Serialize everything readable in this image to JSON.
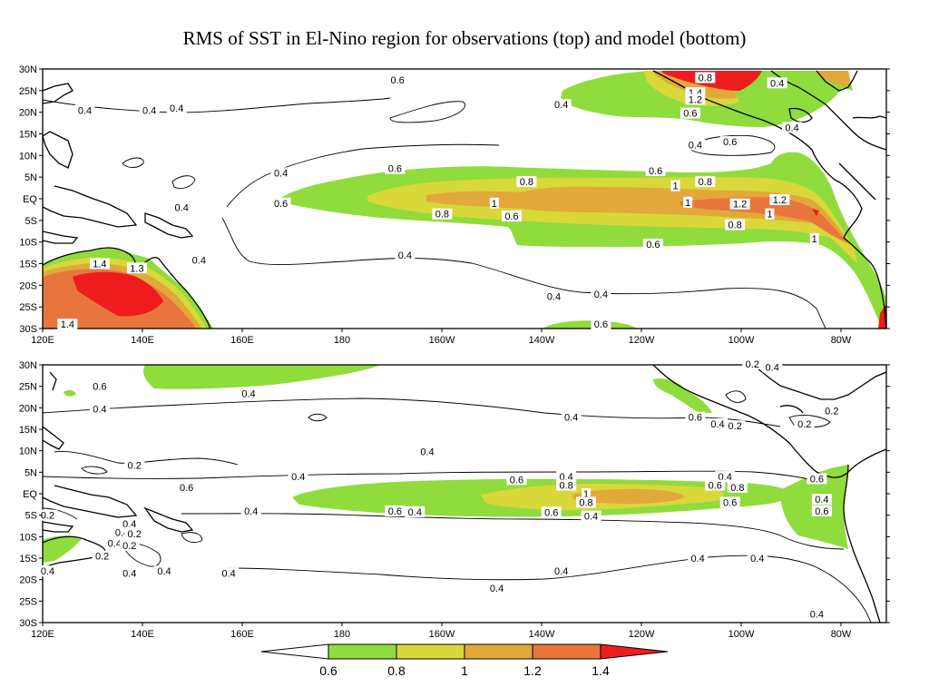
{
  "title": "RMS of SST in El-Nino region for observations (top) and model (bottom)",
  "axes": {
    "lat_labels": [
      "30N",
      "25N",
      "20N",
      "15N",
      "10N",
      "5N",
      "EQ",
      "5S",
      "10S",
      "15S",
      "20S",
      "25S",
      "30S"
    ],
    "lon_labels": [
      "120E",
      "140E",
      "160E",
      "180",
      "160W",
      "140W",
      "120W",
      "100W",
      "80W"
    ]
  },
  "colorbar": {
    "levels": [
      "0.6",
      "0.8",
      "1",
      "1.2",
      "1.4"
    ],
    "colors": [
      "#8fdc3c",
      "#d8d83a",
      "#e2a83a",
      "#e8763c",
      "#ee1c1c"
    ]
  },
  "panels": [
    {
      "id": "observations",
      "contour_labels": [
        {
          "t": "0.6",
          "lon": 191.5,
          "lat": 27.5
        },
        {
          "t": "0.4",
          "lon": 141.5,
          "lat": 20.5
        },
        {
          "t": "0.4",
          "lon": 224.5,
          "lat": 21.8
        },
        {
          "t": "0.4",
          "lon": 128.5,
          "lat": 20.5
        },
        {
          "t": "0.4",
          "lon": 147.0,
          "lat": 21.0
        },
        {
          "t": "0.4",
          "lon": 268.0,
          "lat": 26.8
        },
        {
          "t": "0.8",
          "lon": 253.5,
          "lat": 28.0
        },
        {
          "t": "1.4",
          "lon": 251.5,
          "lat": 24.5
        },
        {
          "t": "1.2",
          "lon": 251.5,
          "lat": 23.0
        },
        {
          "t": "0.6",
          "lon": 250.5,
          "lat": 19.8
        },
        {
          "t": "0.4",
          "lon": 271.0,
          "lat": 16.5
        },
        {
          "t": "0.4",
          "lon": 251.5,
          "lat": 12.5
        },
        {
          "t": "0.6",
          "lon": 258.5,
          "lat": 13.2
        },
        {
          "t": "0.4",
          "lon": 168.0,
          "lat": 6.0
        },
        {
          "t": "0.6",
          "lon": 191.0,
          "lat": 7.0
        },
        {
          "t": "0.6",
          "lon": 243.5,
          "lat": 6.5
        },
        {
          "t": "0.8",
          "lon": 217.5,
          "lat": 4.0
        },
        {
          "t": "0.8",
          "lon": 253.5,
          "lat": 4.0
        },
        {
          "t": "1",
          "lon": 247.5,
          "lat": 3.0
        },
        {
          "t": "0.6",
          "lon": 168.0,
          "lat": -1.0
        },
        {
          "t": "1",
          "lon": 211.0,
          "lat": -1.0
        },
        {
          "t": "1",
          "lon": 250.0,
          "lat": -0.8
        },
        {
          "t": "1.2",
          "lon": 260.5,
          "lat": -1.2
        },
        {
          "t": "1.2",
          "lon": 268.5,
          "lat": -0.2
        },
        {
          "t": "0.4",
          "lon": 148.0,
          "lat": -2.0
        },
        {
          "t": "0.8",
          "lon": 200.5,
          "lat": -3.5
        },
        {
          "t": "0.6",
          "lon": 214.5,
          "lat": -4.0
        },
        {
          "t": "1",
          "lon": 266.5,
          "lat": -3.5
        },
        {
          "t": "0.8",
          "lon": 259.5,
          "lat": -6.0
        },
        {
          "t": "1",
          "lon": 275.5,
          "lat": -9.2
        },
        {
          "t": "0.6",
          "lon": 243.0,
          "lat": -10.5
        },
        {
          "t": "0.4",
          "lon": 151.5,
          "lat": -14.2
        },
        {
          "t": "0.4",
          "lon": 193.0,
          "lat": -13.0
        },
        {
          "t": "1.4",
          "lon": 131.5,
          "lat": -15.0
        },
        {
          "t": "1.3",
          "lon": 139.0,
          "lat": -16.0
        },
        {
          "t": "0.4",
          "lon": 223.0,
          "lat": -22.5
        },
        {
          "t": "0.4",
          "lon": 232.5,
          "lat": -22.0
        },
        {
          "t": "1.4",
          "lon": 125.0,
          "lat": -29.0
        },
        {
          "t": "0.6",
          "lon": 232.5,
          "lat": -29.0
        }
      ]
    },
    {
      "id": "model",
      "contour_labels": [
        {
          "t": "0.2",
          "lon": 263.0,
          "lat": 30.2
        },
        {
          "t": "0.4",
          "lon": 267.0,
          "lat": 29.5
        },
        {
          "t": "0.6",
          "lon": 131.5,
          "lat": 25.0
        },
        {
          "t": "0.4",
          "lon": 161.5,
          "lat": 23.3
        },
        {
          "t": "0.4",
          "lon": 131.5,
          "lat": 19.8
        },
        {
          "t": "0.4",
          "lon": 226.5,
          "lat": 17.9
        },
        {
          "t": "0.6",
          "lon": 251.5,
          "lat": 17.8
        },
        {
          "t": "0.4",
          "lon": 256.0,
          "lat": 16.3
        },
        {
          "t": "0.2",
          "lon": 259.5,
          "lat": 15.8
        },
        {
          "t": "0.2",
          "lon": 273.5,
          "lat": 16.3
        },
        {
          "t": "0.2",
          "lon": 279.0,
          "lat": 19.3
        },
        {
          "t": "0.4",
          "lon": 197.5,
          "lat": 9.8
        },
        {
          "t": "0.2",
          "lon": 138.5,
          "lat": 6.7
        },
        {
          "t": "0.4",
          "lon": 171.5,
          "lat": 4.0
        },
        {
          "t": "0.4",
          "lon": 225.5,
          "lat": 4.0
        },
        {
          "t": "0.4",
          "lon": 257.5,
          "lat": 4.0
        },
        {
          "t": "0.6",
          "lon": 215.5,
          "lat": 3.3
        },
        {
          "t": "0.8",
          "lon": 225.5,
          "lat": 2.0
        },
        {
          "t": "0.6",
          "lon": 255.5,
          "lat": 2.0
        },
        {
          "t": "0.8",
          "lon": 260.0,
          "lat": 1.5
        },
        {
          "t": "0.6",
          "lon": 276.0,
          "lat": 3.5
        },
        {
          "t": "0.6",
          "lon": 149.0,
          "lat": 1.5
        },
        {
          "t": "1",
          "lon": 229.5,
          "lat": 0.0
        },
        {
          "t": "0.8",
          "lon": 229.5,
          "lat": -2.0
        },
        {
          "t": "0.6",
          "lon": 258.5,
          "lat": -2.0
        },
        {
          "t": "0.4",
          "lon": 277.0,
          "lat": -1.3
        },
        {
          "t": "0.6",
          "lon": 277.0,
          "lat": -4.0
        },
        {
          "t": "0.4",
          "lon": 162.0,
          "lat": -4.0
        },
        {
          "t": "0.6",
          "lon": 191.0,
          "lat": -4.0
        },
        {
          "t": "0.4",
          "lon": 195.0,
          "lat": -4.2
        },
        {
          "t": "0.6",
          "lon": 222.5,
          "lat": -4.3
        },
        {
          "t": "0.4",
          "lon": 230.5,
          "lat": -5.2
        },
        {
          "t": "0.2",
          "lon": 121.0,
          "lat": -5.0
        },
        {
          "t": "0.4",
          "lon": 137.5,
          "lat": -7.0
        },
        {
          "t": "0.4",
          "lon": 136.0,
          "lat": -9.0
        },
        {
          "t": "0.2",
          "lon": 138.5,
          "lat": -9.3
        },
        {
          "t": "0.4",
          "lon": 134.5,
          "lat": -11.5
        },
        {
          "t": "0.2",
          "lon": 137.5,
          "lat": -12.0
        },
        {
          "t": "0.2",
          "lon": 132.0,
          "lat": -14.5
        },
        {
          "t": "0.4",
          "lon": 121.0,
          "lat": -18.0
        },
        {
          "t": "0.4",
          "lon": 137.5,
          "lat": -18.5
        },
        {
          "t": "0.4",
          "lon": 144.5,
          "lat": -18.0
        },
        {
          "t": "0.4",
          "lon": 157.5,
          "lat": -18.5
        },
        {
          "t": "0.4",
          "lon": 252.0,
          "lat": -15.0
        },
        {
          "t": "0.4",
          "lon": 264.0,
          "lat": -15.0
        },
        {
          "t": "0.4",
          "lon": 211.5,
          "lat": -22.0
        },
        {
          "t": "0.4",
          "lon": 224.5,
          "lat": -18.0
        },
        {
          "t": "0.4",
          "lon": 276.0,
          "lat": -28.0
        }
      ]
    }
  ]
}
